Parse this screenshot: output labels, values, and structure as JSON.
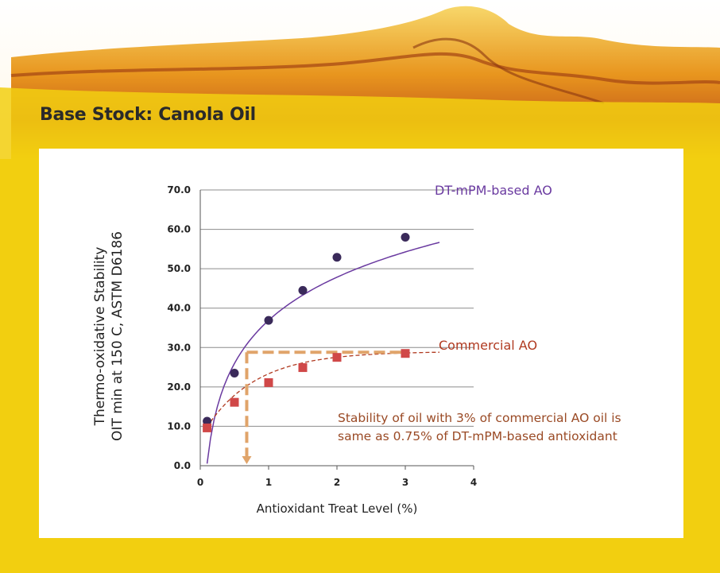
{
  "header": {
    "title": "Base Stock: Canola Oil"
  },
  "colors": {
    "background": "#f2cf10",
    "dt_series": "#6a3aa0",
    "dt_marker": "#3a2a5a",
    "commercial_series": "#b03a20",
    "commercial_marker": "#d04848",
    "annotation_guide": "#e0a46a",
    "annotation_text": "#9a4a25"
  },
  "chart_data": {
    "type": "scatter",
    "title": "",
    "xlabel": "Antioxidant Treat Level  (%)",
    "ylabel": [
      "Thermo-oxidative Stability",
      "OIT  min at 150 C, ASTM D6186"
    ],
    "xlim": [
      0,
      4
    ],
    "ylim": [
      0,
      70
    ],
    "x_ticks": [
      "0",
      "1",
      "2",
      "3",
      "4"
    ],
    "y_ticks": [
      "0.0",
      "10.0",
      "20.0",
      "30.0",
      "40.0",
      "50.0",
      "60.0",
      "70.0"
    ],
    "grid": "horizontal",
    "series": [
      {
        "name": "DT-mPM-based AO",
        "marker": "circle",
        "trendline": "solid",
        "x": [
          0.1,
          0.5,
          1.0,
          1.5,
          2.0,
          3.0
        ],
        "y": [
          11.3,
          23.5,
          36.9,
          44.5,
          52.9,
          58.0
        ]
      },
      {
        "name": "Commercial AO",
        "marker": "square",
        "trendline": "dashed",
        "x": [
          0.1,
          0.5,
          1.0,
          1.5,
          2.0,
          3.0
        ],
        "y": [
          9.6,
          16.1,
          21.1,
          24.9,
          27.5,
          28.5
        ]
      }
    ],
    "annotation": {
      "lines": [
        "Stability of oil with 3% of commercial AO oil is",
        "same as 0.75% of DT-mPM-based antioxidant"
      ],
      "guide_y": 28.8,
      "guide_x": 0.68,
      "guide_x_end": 3.0
    }
  }
}
